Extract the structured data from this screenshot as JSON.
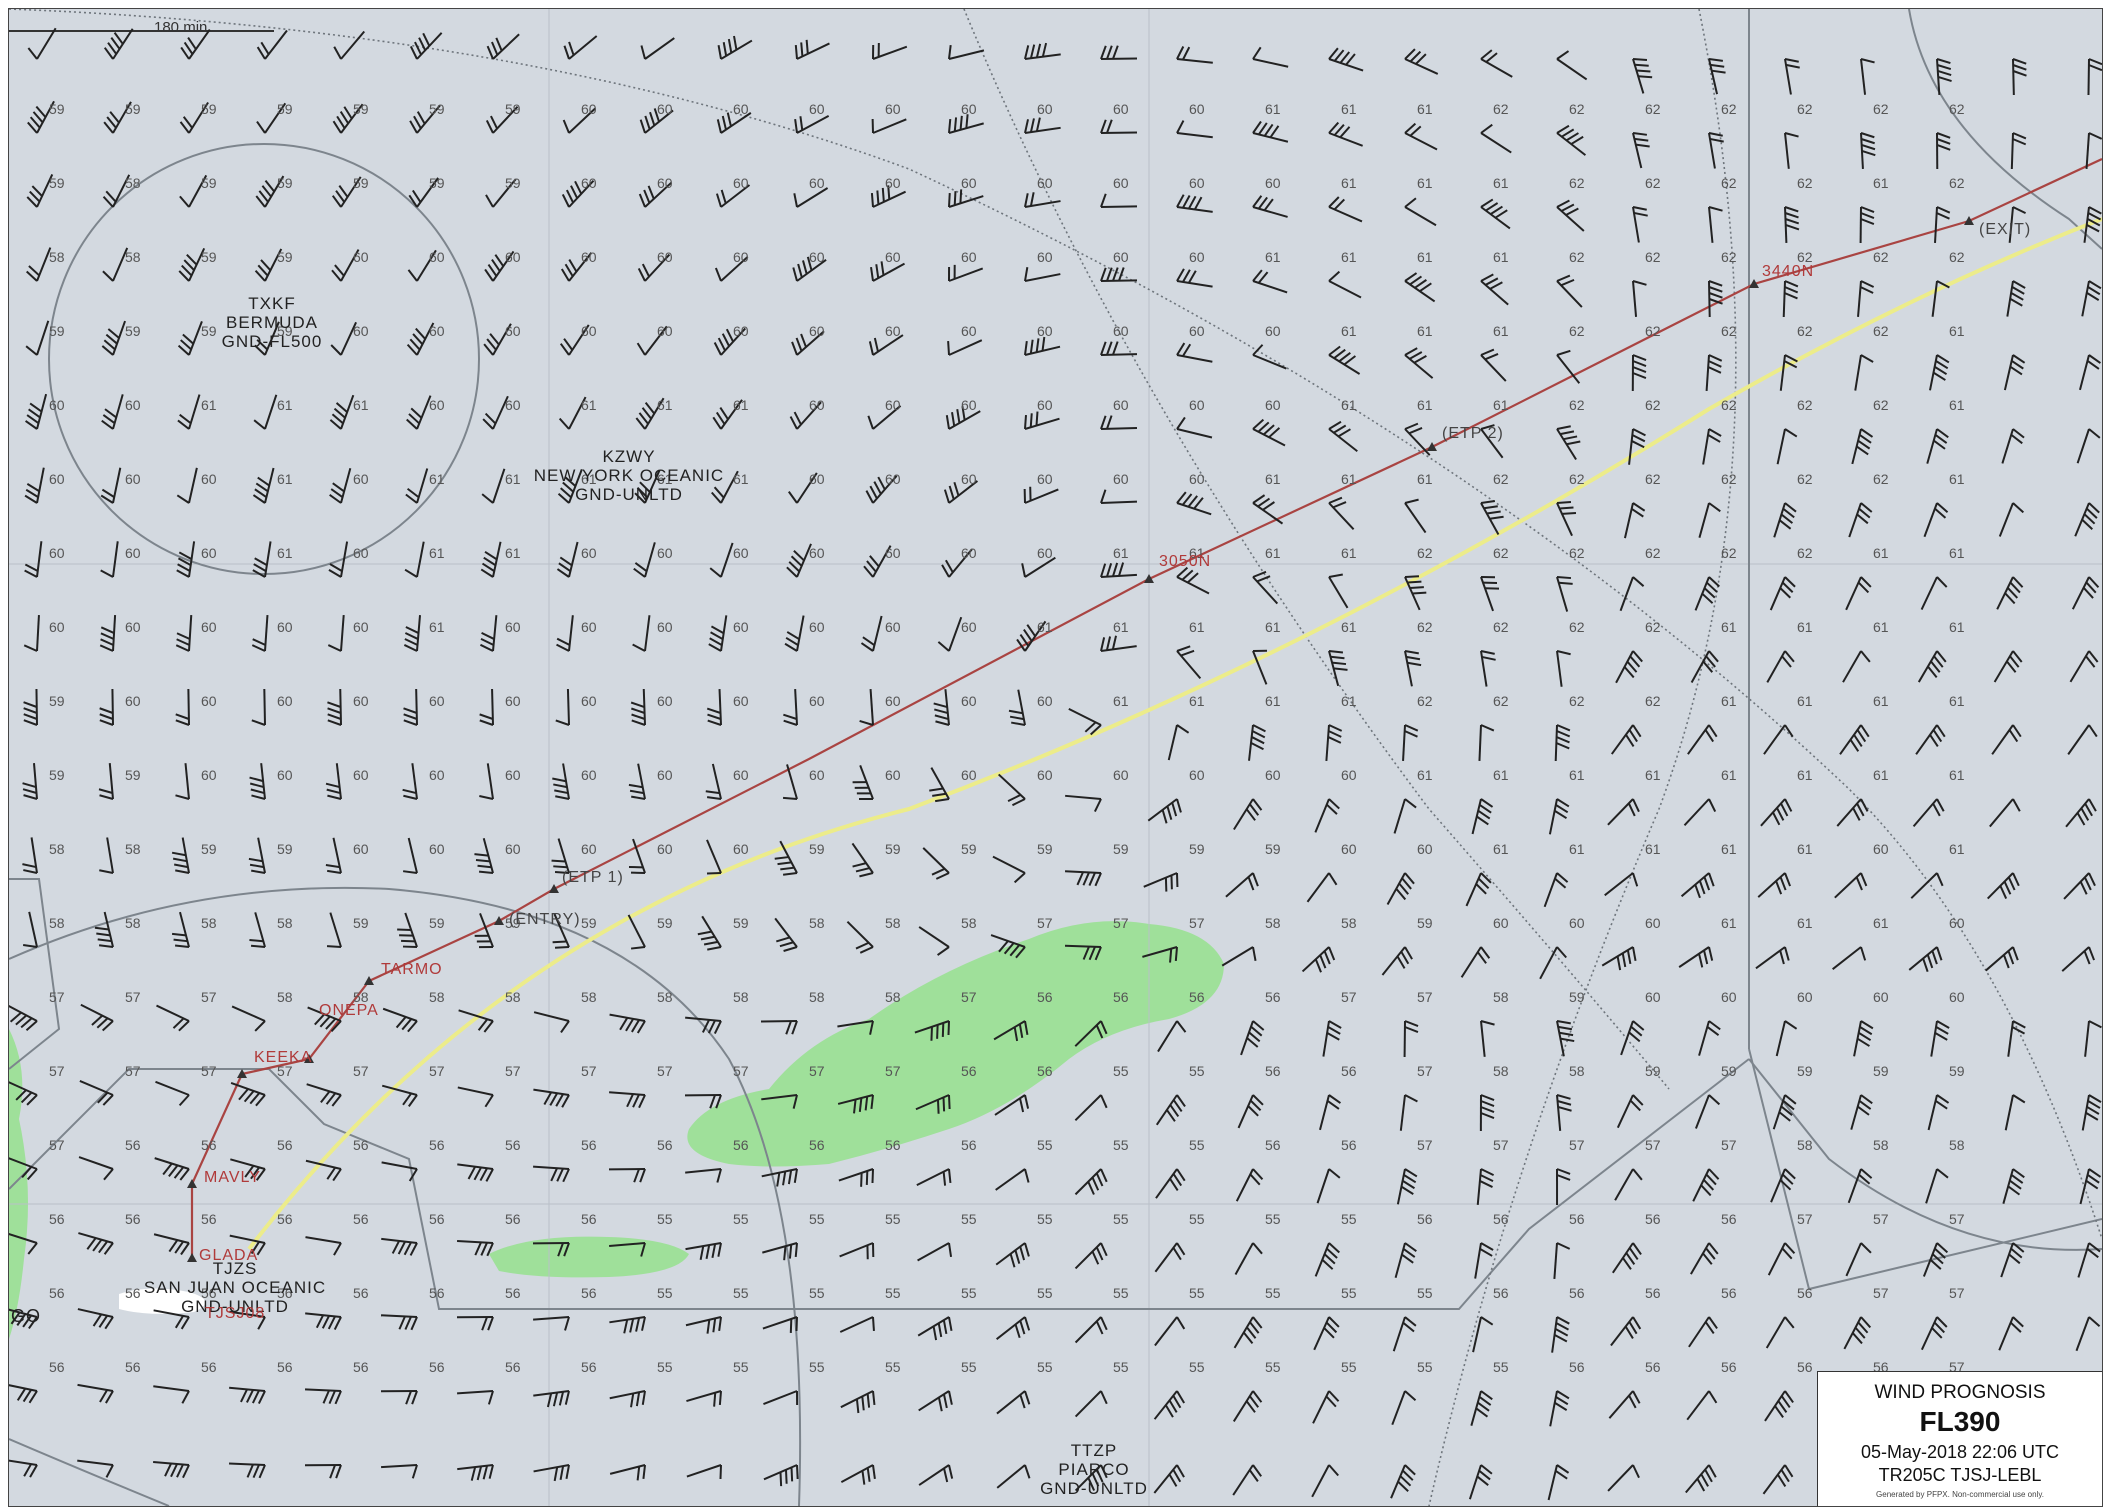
{
  "map": {
    "scale_label": "180 min",
    "temperatures": [
      [
        "59",
        "59",
        "59",
        "59",
        "59",
        "59",
        "59",
        "60",
        "60",
        "60",
        "60",
        "60",
        "60",
        "60",
        "60",
        "60",
        "61",
        "61",
        "61",
        "62",
        "62",
        "62",
        "62",
        "62",
        "62",
        "62"
      ],
      [
        "59",
        "58",
        "59",
        "59",
        "59",
        "59",
        "59",
        "60",
        "60",
        "60",
        "60",
        "60",
        "60",
        "60",
        "60",
        "60",
        "60",
        "61",
        "61",
        "61",
        "62",
        "62",
        "62",
        "62",
        "61",
        "62"
      ],
      [
        "58",
        "58",
        "59",
        "59",
        "60",
        "60",
        "60",
        "60",
        "60",
        "60",
        "60",
        "60",
        "60",
        "60",
        "60",
        "60",
        "61",
        "61",
        "61",
        "61",
        "62",
        "62",
        "62",
        "62",
        "62",
        "62"
      ],
      [
        "59",
        "59",
        "59",
        "59",
        "60",
        "60",
        "60",
        "60",
        "60",
        "60",
        "60",
        "60",
        "60",
        "60",
        "60",
        "60",
        "60",
        "61",
        "61",
        "61",
        "62",
        "62",
        "62",
        "62",
        "62",
        "61"
      ],
      [
        "60",
        "60",
        "61",
        "61",
        "61",
        "60",
        "60",
        "61",
        "61",
        "61",
        "60",
        "60",
        "60",
        "60",
        "60",
        "60",
        "60",
        "61",
        "61",
        "61",
        "62",
        "62",
        "62",
        "62",
        "62",
        "61"
      ],
      [
        "60",
        "60",
        "60",
        "61",
        "60",
        "61",
        "61",
        "61",
        "61",
        "61",
        "60",
        "60",
        "60",
        "60",
        "60",
        "60",
        "61",
        "61",
        "61",
        "62",
        "62",
        "62",
        "62",
        "62",
        "62",
        "61"
      ],
      [
        "60",
        "60",
        "60",
        "61",
        "60",
        "61",
        "61",
        "60",
        "60",
        "60",
        "60",
        "60",
        "60",
        "60",
        "61",
        "61",
        "61",
        "61",
        "62",
        "62",
        "62",
        "62",
        "62",
        "62",
        "61",
        "61"
      ],
      [
        "60",
        "60",
        "60",
        "60",
        "60",
        "61",
        "60",
        "60",
        "60",
        "60",
        "60",
        "60",
        "60",
        "61",
        "61",
        "61",
        "61",
        "61",
        "62",
        "62",
        "62",
        "62",
        "61",
        "61",
        "61",
        "61"
      ],
      [
        "59",
        "60",
        "60",
        "60",
        "60",
        "60",
        "60",
        "60",
        "60",
        "60",
        "60",
        "60",
        "60",
        "60",
        "61",
        "61",
        "61",
        "61",
        "62",
        "62",
        "62",
        "62",
        "61",
        "61",
        "61",
        "61"
      ],
      [
        "59",
        "59",
        "60",
        "60",
        "60",
        "60",
        "60",
        "60",
        "60",
        "60",
        "60",
        "60",
        "60",
        "60",
        "60",
        "60",
        "60",
        "60",
        "61",
        "61",
        "61",
        "61",
        "61",
        "61",
        "61",
        "61"
      ],
      [
        "58",
        "58",
        "59",
        "59",
        "60",
        "60",
        "60",
        "60",
        "60",
        "60",
        "59",
        "59",
        "59",
        "59",
        "59",
        "59",
        "59",
        "60",
        "60",
        "61",
        "61",
        "61",
        "61",
        "61",
        "60",
        "61"
      ],
      [
        "58",
        "58",
        "58",
        "58",
        "59",
        "59",
        "59",
        "59",
        "59",
        "59",
        "58",
        "58",
        "58",
        "57",
        "57",
        "57",
        "58",
        "58",
        "59",
        "60",
        "60",
        "60",
        "61",
        "61",
        "61",
        "60"
      ],
      [
        "57",
        "57",
        "57",
        "58",
        "58",
        "58",
        "58",
        "58",
        "58",
        "58",
        "58",
        "58",
        "57",
        "56",
        "56",
        "56",
        "56",
        "57",
        "57",
        "58",
        "59",
        "60",
        "60",
        "60",
        "60",
        "60"
      ],
      [
        "57",
        "57",
        "57",
        "57",
        "57",
        "57",
        "57",
        "57",
        "57",
        "57",
        "57",
        "57",
        "56",
        "56",
        "55",
        "55",
        "56",
        "56",
        "57",
        "58",
        "58",
        "59",
        "59",
        "59",
        "59",
        "59"
      ],
      [
        "57",
        "56",
        "56",
        "56",
        "56",
        "56",
        "56",
        "56",
        "56",
        "56",
        "56",
        "56",
        "56",
        "55",
        "55",
        "55",
        "56",
        "56",
        "57",
        "57",
        "57",
        "57",
        "57",
        "58",
        "58",
        "58"
      ],
      [
        "56",
        "56",
        "56",
        "56",
        "56",
        "56",
        "56",
        "56",
        "55",
        "55",
        "55",
        "55",
        "55",
        "55",
        "55",
        "55",
        "55",
        "55",
        "56",
        "56",
        "56",
        "56",
        "56",
        "57",
        "57",
        "57"
      ],
      [
        "56",
        "56",
        "56",
        "56",
        "56",
        "56",
        "56",
        "56",
        "55",
        "55",
        "55",
        "55",
        "55",
        "55",
        "55",
        "55",
        "55",
        "55",
        "55",
        "56",
        "56",
        "56",
        "56",
        "56",
        "57",
        "57"
      ],
      [
        "56",
        "56",
        "56",
        "56",
        "56",
        "56",
        "56",
        "56",
        "55",
        "55",
        "55",
        "55",
        "55",
        "55",
        "55",
        "55",
        "55",
        "55",
        "55",
        "55",
        "56",
        "56",
        "56",
        "56",
        "56",
        "57"
      ]
    ],
    "regions": {
      "bermuda": [
        "TXKF",
        "BERMUDA",
        "GND-FL500"
      ],
      "new_york": [
        "KZWY",
        "NEW YORK OCEANIC",
        "GND-UNLTD"
      ],
      "san_juan": [
        "TJZS",
        "SAN JUAN OCEANIC",
        "GND-UNLTD"
      ],
      "piarco": [
        "TTZP",
        "PIARCO",
        "GND-UNLTD"
      ]
    },
    "route_waypoints": {
      "glada": "GLADA",
      "tjsj": "TJSJ08",
      "mavly": "MAVLY",
      "keeka": "KEEKA",
      "onepa": "ONEPA",
      "tarmo": "TARMO",
      "entry": "(ENTRY)",
      "etp1": "(ETP 1)",
      "w3050": "3050N",
      "etp2": "(ETP 2)",
      "w3440": "3440N",
      "exit": "(EXIT)",
      "edge_left": "GO"
    },
    "colors": {
      "background": "#d3d9e0",
      "route": "#a94442",
      "alternate_track": "#ecec8a",
      "cloud": "#9fe09a",
      "boundary": "#7d858d"
    }
  },
  "legend": {
    "title": "WIND PROGNOSIS",
    "level": "FL390",
    "datetime": "05-May-2018 22:06 UTC",
    "flight": "TR205C TJSJ-LEBL",
    "footer": "Generated by PFPX. Non-commercial use only."
  }
}
